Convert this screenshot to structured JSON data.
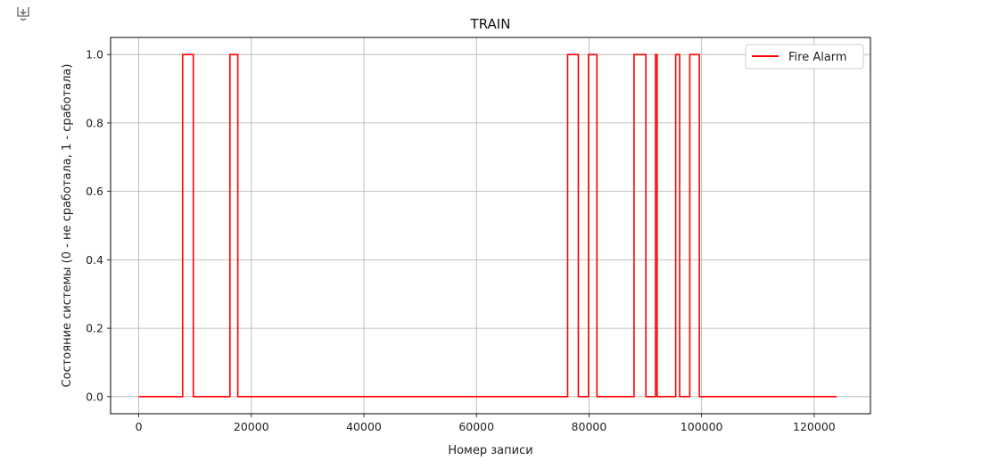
{
  "cell": {
    "output_icon": "output-toggle-icon"
  },
  "chart_data": {
    "type": "line",
    "title": "TRAIN",
    "xlabel": "Номер записи",
    "ylabel": "Состояние системы (0 - не сработала, 1 - сработала)",
    "xlim": [
      -5000,
      130000
    ],
    "ylim": [
      -0.05,
      1.05
    ],
    "xticks": [
      0,
      20000,
      40000,
      60000,
      80000,
      100000,
      120000
    ],
    "xtick_labels": [
      "0",
      "20000",
      "40000",
      "60000",
      "80000",
      "100000",
      "120000"
    ],
    "yticks": [
      0.0,
      0.2,
      0.4,
      0.6,
      0.8,
      1.0
    ],
    "ytick_labels": [
      "0.0",
      "0.2",
      "0.4",
      "0.6",
      "0.8",
      "1.0"
    ],
    "grid": true,
    "legend_position": "top-right",
    "series": [
      {
        "name": "Fire Alarm",
        "color": "#ff0000",
        "points": [
          [
            0,
            0
          ],
          [
            7800,
            0
          ],
          [
            7800,
            1
          ],
          [
            9700,
            1
          ],
          [
            9700,
            0
          ],
          [
            16200,
            0
          ],
          [
            16200,
            1
          ],
          [
            17600,
            1
          ],
          [
            17600,
            0
          ],
          [
            76200,
            0
          ],
          [
            76200,
            1
          ],
          [
            78100,
            1
          ],
          [
            78100,
            0
          ],
          [
            79900,
            0
          ],
          [
            79900,
            1
          ],
          [
            81400,
            1
          ],
          [
            81400,
            0
          ],
          [
            88000,
            0
          ],
          [
            88000,
            1
          ],
          [
            90100,
            1
          ],
          [
            90100,
            0
          ],
          [
            91800,
            0
          ],
          [
            91800,
            1
          ],
          [
            92100,
            1
          ],
          [
            92100,
            0
          ],
          [
            95400,
            0
          ],
          [
            95400,
            1
          ],
          [
            96100,
            1
          ],
          [
            96100,
            0
          ],
          [
            97900,
            0
          ],
          [
            97900,
            1
          ],
          [
            99600,
            1
          ],
          [
            99600,
            0
          ],
          [
            124000,
            0
          ]
        ]
      }
    ]
  }
}
